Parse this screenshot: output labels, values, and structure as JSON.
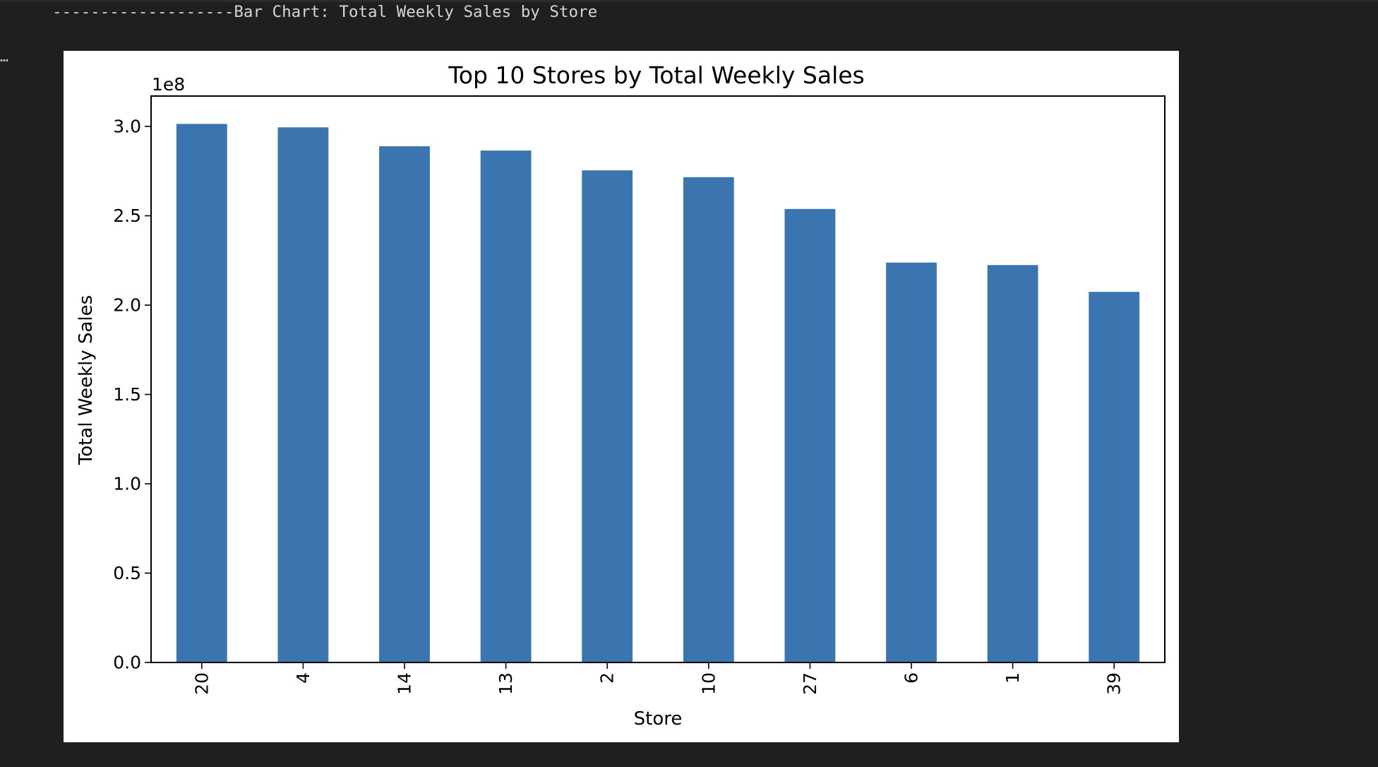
{
  "output": {
    "header_text": "-------------------Bar Chart: Total Weekly Sales by Store",
    "ellipsis": "…"
  },
  "chart_data": {
    "type": "bar",
    "title": "Top 10 Stores by Total Weekly Sales",
    "xlabel": "Store",
    "ylabel": "Total Weekly Sales",
    "y_offset_label": "1e8",
    "y_scale_factor": 100000000,
    "categories": [
      "20",
      "4",
      "14",
      "13",
      "2",
      "10",
      "27",
      "6",
      "1",
      "39"
    ],
    "values": [
      301400000,
      299500000,
      288900000,
      286500000,
      275400000,
      271600000,
      253800000,
      223800000,
      222400000,
      207400000
    ],
    "ylim": [
      0,
      317000000
    ],
    "yticks": [
      0,
      50000000,
      100000000,
      150000000,
      200000000,
      250000000,
      300000000
    ],
    "ytick_labels": [
      "0.0",
      "0.5",
      "1.0",
      "1.5",
      "2.0",
      "2.5",
      "3.0"
    ],
    "xtick_rotation": 90,
    "bar_color": "#3a75af",
    "grid": false,
    "legend": "none"
  }
}
